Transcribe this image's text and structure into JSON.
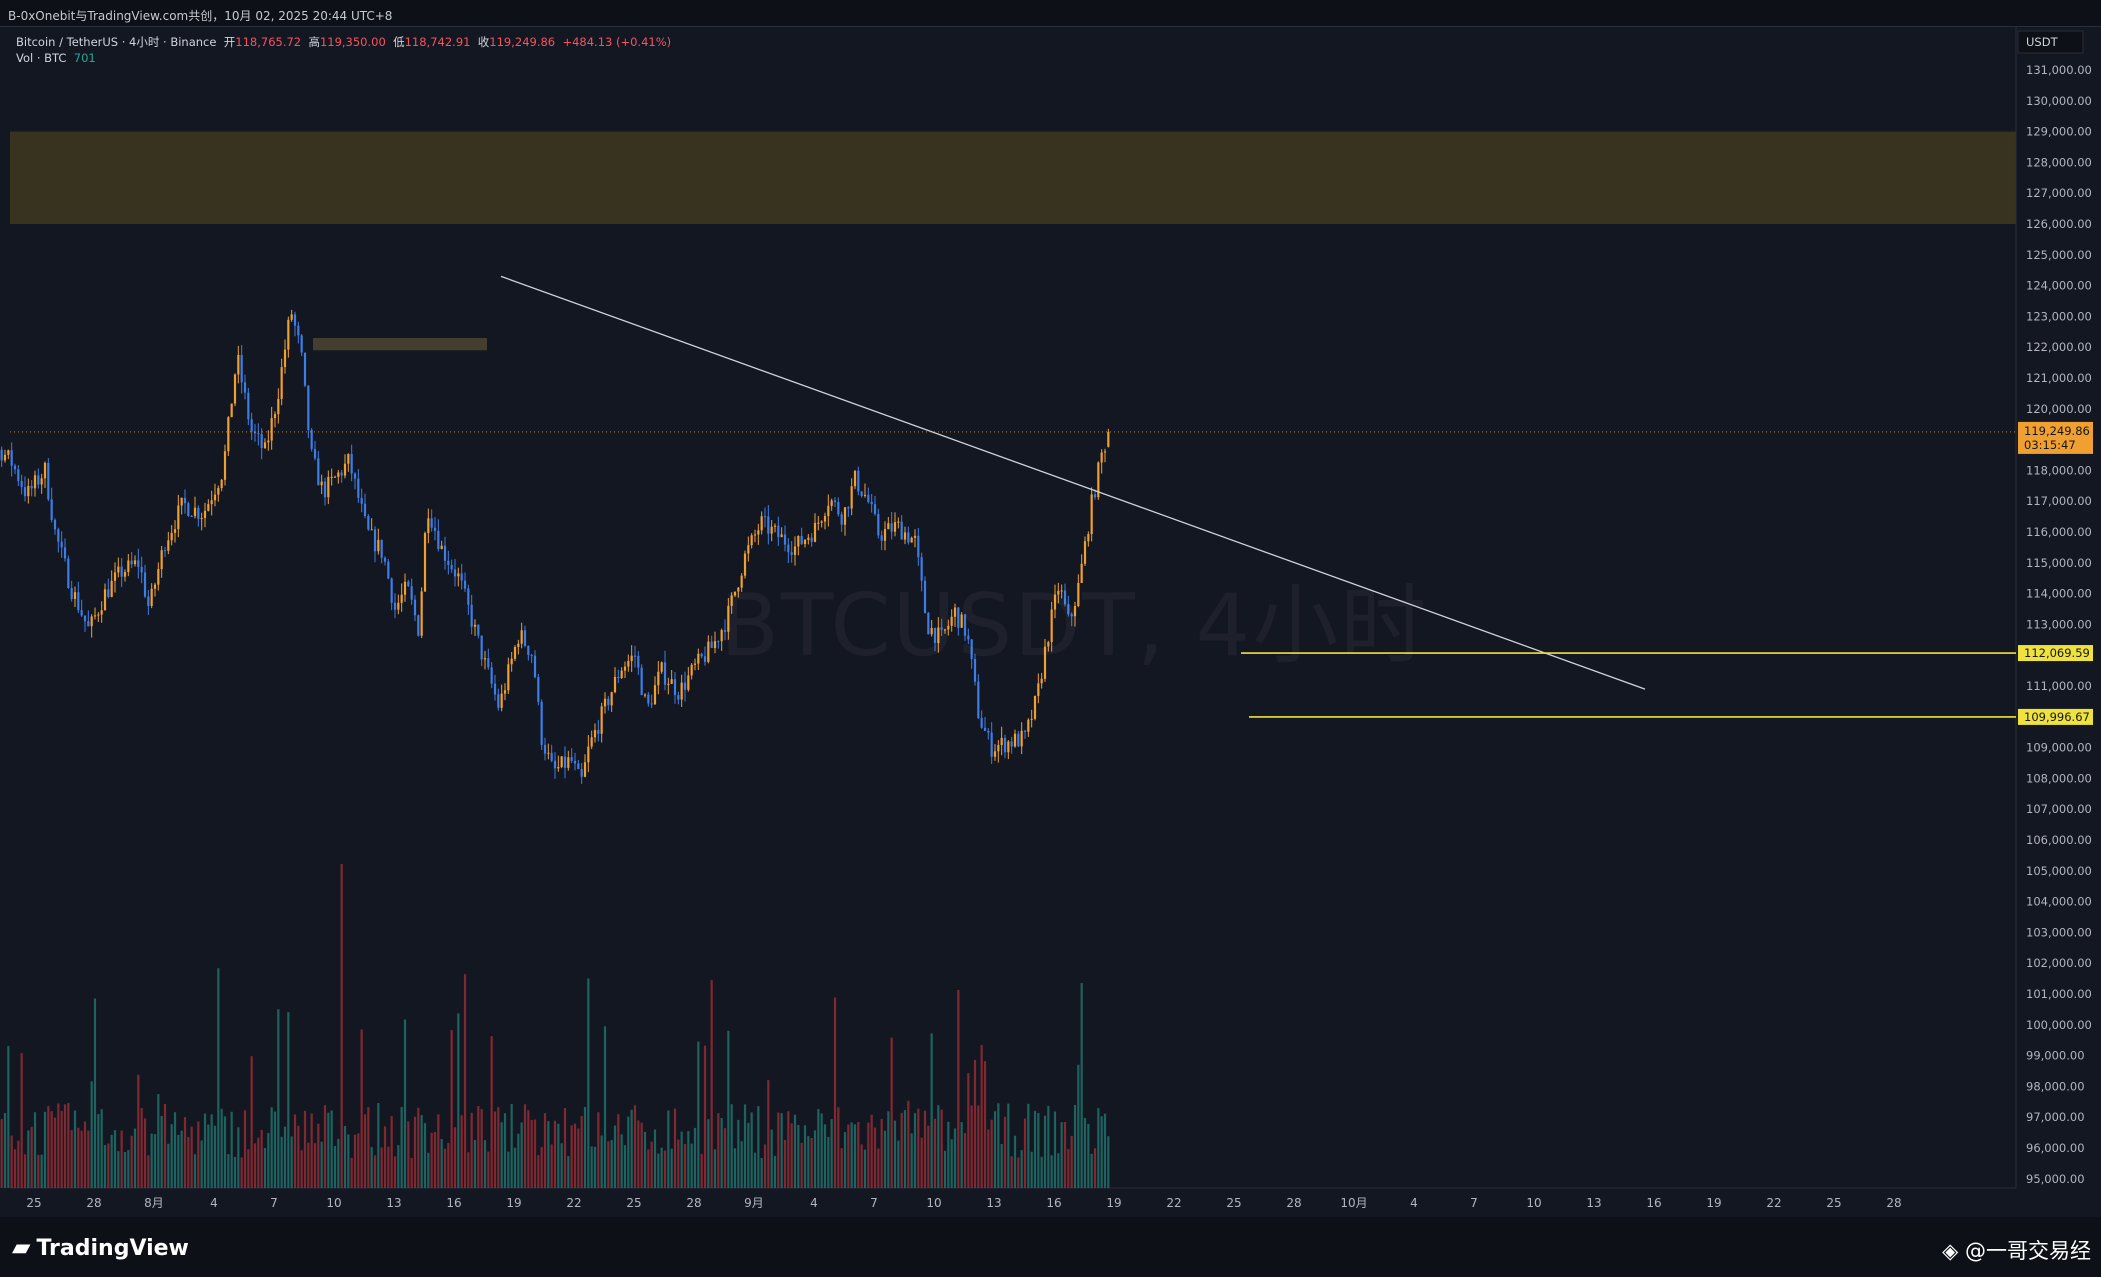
{
  "share_line": "B-0xOnebit与TradingView.com共创，10月 02, 2025 20:44 UTC+8",
  "header": {
    "symbol": "Bitcoin / TetherUS · 4小时 · Binance",
    "open_label": "开",
    "open": "118,765.72",
    "high_label": "高",
    "high": "119,350.00",
    "low_label": "低",
    "low": "118,742.91",
    "close_label": "收",
    "close": "119,249.86",
    "change": "+484.13 (+0.41%)",
    "vol_label": "Vol · BTC",
    "vol_value": "701"
  },
  "watermark": "BTCUSDT, 4小时",
  "currency": "USDT",
  "footer": {
    "logo": "TradingView",
    "credit": "@一哥交易经"
  },
  "colors": {
    "background": "#131722",
    "bull_candle": "#f0a030",
    "bear_candle": "#3d7de6",
    "vol_up": "#1f6b66",
    "vol_down": "#8e2b33",
    "zone": "#3a3520",
    "level_line": "#f0e23c",
    "trendline": "#d0d3dc"
  },
  "chart_data": {
    "type": "candlestick",
    "interval": "4小时",
    "price_axis": {
      "min": 95000,
      "max": 131000,
      "step": 1000,
      "labels": [
        "131,000.00",
        "130,000.00",
        "129,000.00",
        "128,000.00",
        "127,000.00",
        "126,000.00",
        "125,000.00",
        "124,000.00",
        "123,000.00",
        "122,000.00",
        "121,000.00",
        "120,000.00",
        "118,000.00",
        "117,000.00",
        "116,000.00",
        "115,000.00",
        "114,000.00",
        "113,000.00",
        "111,000.00",
        "110,000.00",
        "109,000.00",
        "108,000.00",
        "107,000.00",
        "106,000.00",
        "105,000.00",
        "104,000.00",
        "103,000.00",
        "102,000.00",
        "101,000.00",
        "100,000.00",
        "99,000.00",
        "98,000.00",
        "97,000.00",
        "96,000.00",
        "95,000.00"
      ]
    },
    "date_axis": {
      "labels": [
        "25",
        "28",
        "8月",
        "4",
        "7",
        "10",
        "13",
        "16",
        "19",
        "22",
        "25",
        "28",
        "9月",
        "4",
        "7",
        "10",
        "13",
        "16",
        "19",
        "22",
        "25",
        "28",
        "10月",
        "4",
        "7",
        "10",
        "13",
        "16",
        "19",
        "22",
        "25",
        "28"
      ]
    },
    "current_price": {
      "value": 119249.86,
      "label": "119,249.86",
      "countdown": "03:15:47"
    },
    "horizontal_levels": [
      {
        "value": 112069.59,
        "label": "112,069.59"
      },
      {
        "value": 109996.67,
        "label": "109,996.67"
      }
    ],
    "zones": [
      {
        "low": 126000,
        "high": 129000
      },
      {
        "low": 121900,
        "high": 122300
      }
    ],
    "trendline": {
      "from_day": 20.3,
      "from_price": 124300,
      "to_day": 77.5,
      "to_price": 110900
    },
    "anchor_closes": [
      {
        "day": -7,
        "price": 118500
      },
      {
        "day": -6.5,
        "price": 115200
      },
      {
        "day": -5.5,
        "price": 117300
      },
      {
        "day": -4.8,
        "price": 118700
      },
      {
        "day": -4.2,
        "price": 118300
      },
      {
        "day": -3.4,
        "price": 117200
      },
      {
        "day": -2.5,
        "price": 118000
      },
      {
        "day": -2.0,
        "price": 116000
      },
      {
        "day": -1.2,
        "price": 114200
      },
      {
        "day": -0.3,
        "price": 112800
      },
      {
        "day": 0.5,
        "price": 114000
      },
      {
        "day": 1.3,
        "price": 114700
      },
      {
        "day": 2.2,
        "price": 115000
      },
      {
        "day": 2.7,
        "price": 113500
      },
      {
        "day": 3.5,
        "price": 115700
      },
      {
        "day": 4.4,
        "price": 116900
      },
      {
        "day": 5.4,
        "price": 116600
      },
      {
        "day": 6.4,
        "price": 118000
      },
      {
        "day": 7.1,
        "price": 121700
      },
      {
        "day": 7.8,
        "price": 119300
      },
      {
        "day": 8.5,
        "price": 118600
      },
      {
        "day": 9.1,
        "price": 120300
      },
      {
        "day": 9.8,
        "price": 123200
      },
      {
        "day": 10.3,
        "price": 121800
      },
      {
        "day": 10.8,
        "price": 118500
      },
      {
        "day": 11.4,
        "price": 117300
      },
      {
        "day": 12.1,
        "price": 117800
      },
      {
        "day": 12.7,
        "price": 118300
      },
      {
        "day": 13.6,
        "price": 116000
      },
      {
        "day": 14.4,
        "price": 115300
      },
      {
        "day": 15.0,
        "price": 113500
      },
      {
        "day": 15.6,
        "price": 114200
      },
      {
        "day": 16.2,
        "price": 112800
      },
      {
        "day": 16.6,
        "price": 116900
      },
      {
        "day": 17.3,
        "price": 115500
      },
      {
        "day": 18.2,
        "price": 114500
      },
      {
        "day": 18.9,
        "price": 113000
      },
      {
        "day": 19.5,
        "price": 111700
      },
      {
        "day": 20.2,
        "price": 110300
      },
      {
        "day": 21.2,
        "price": 112700
      },
      {
        "day": 21.9,
        "price": 112000
      },
      {
        "day": 22.3,
        "price": 109400
      },
      {
        "day": 22.9,
        "price": 108200
      },
      {
        "day": 23.8,
        "price": 108600
      },
      {
        "day": 24.3,
        "price": 107800
      },
      {
        "day": 24.7,
        "price": 109000
      },
      {
        "day": 25.5,
        "price": 110300
      },
      {
        "day": 26.3,
        "price": 111600
      },
      {
        "day": 27.0,
        "price": 112000
      },
      {
        "day": 27.6,
        "price": 110200
      },
      {
        "day": 28.3,
        "price": 111500
      },
      {
        "day": 29.2,
        "price": 110800
      },
      {
        "day": 30.0,
        "price": 111600
      },
      {
        "day": 30.9,
        "price": 112300
      },
      {
        "day": 31.6,
        "price": 113200
      },
      {
        "day": 32.5,
        "price": 115200
      },
      {
        "day": 33.3,
        "price": 116300
      },
      {
        "day": 34.1,
        "price": 115900
      },
      {
        "day": 35.0,
        "price": 115500
      },
      {
        "day": 36.0,
        "price": 116100
      },
      {
        "day": 36.7,
        "price": 117100
      },
      {
        "day": 37.4,
        "price": 116500
      },
      {
        "day": 38.0,
        "price": 117700
      },
      {
        "day": 38.6,
        "price": 117100
      },
      {
        "day": 39.2,
        "price": 115900
      },
      {
        "day": 40.1,
        "price": 116200
      },
      {
        "day": 41.0,
        "price": 115700
      },
      {
        "day": 41.6,
        "price": 113000
      },
      {
        "day": 42.3,
        "price": 112500
      },
      {
        "day": 43.0,
        "price": 113400
      },
      {
        "day": 43.6,
        "price": 112700
      },
      {
        "day": 44.2,
        "price": 110000
      },
      {
        "day": 44.8,
        "price": 109000
      },
      {
        "day": 45.8,
        "price": 109200
      },
      {
        "day": 46.5,
        "price": 109300
      },
      {
        "day": 47.1,
        "price": 110600
      },
      {
        "day": 47.6,
        "price": 112500
      },
      {
        "day": 48.2,
        "price": 114300
      },
      {
        "day": 48.7,
        "price": 113000
      },
      {
        "day": 49.2,
        "price": 114300
      },
      {
        "day": 49.8,
        "price": 116800
      },
      {
        "day": 50.4,
        "price": 118700
      },
      {
        "day": 50.8,
        "price": 119250
      }
    ]
  }
}
